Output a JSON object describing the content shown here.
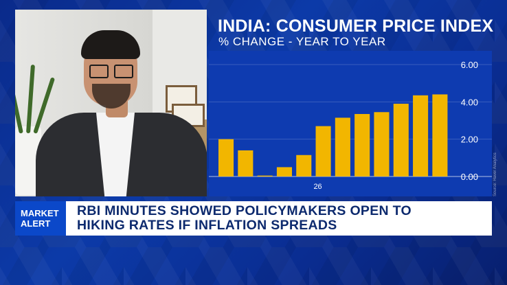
{
  "chart_title": "INDIA: CONSUMER PRICE INDEX",
  "chart_subtitle": "% CHANGE - YEAR TO YEAR",
  "source": "Source: Haver Analytics",
  "alert": {
    "line1": "MARKET",
    "line2": "ALERT"
  },
  "headline": {
    "line1": "RBI MINUTES SHOWED POLICYMAKERS OPEN TO",
    "line2": "HIKING RATES IF INFLATION SPREADS"
  },
  "colors": {
    "bar": "#f2b600",
    "chart_bg": "#0e3bb0",
    "badge": "#0b48c9",
    "headline": "#0d2a6e"
  },
  "chart_data": {
    "type": "bar",
    "x_tick_labels": [
      "26"
    ],
    "values": [
      2.0,
      1.4,
      0.05,
      0.5,
      1.15,
      2.7,
      3.15,
      3.35,
      3.45,
      3.9,
      4.35,
      4.4
    ],
    "ylim": [
      0,
      6
    ],
    "yticks": [
      "6.00",
      "4.00",
      "2.00",
      "0.00"
    ],
    "ytick_values": [
      6,
      4,
      2,
      0
    ],
    "grid": true
  }
}
